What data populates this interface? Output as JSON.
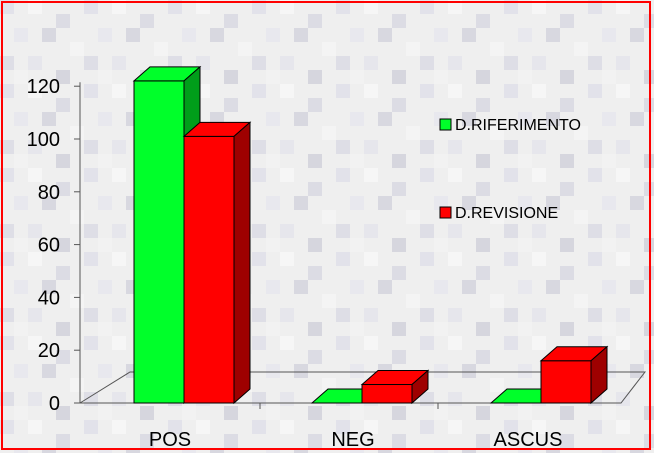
{
  "chart_data": {
    "type": "bar",
    "title": "",
    "xlabel": "",
    "ylabel": "",
    "categories": [
      "POS",
      "NEG",
      "ASCUS"
    ],
    "series": [
      {
        "name": "D.RIFERIMENTO",
        "values": [
          122,
          0,
          0
        ],
        "color": "#00ff2a"
      },
      {
        "name": "D.REVISIONE",
        "values": [
          101,
          7,
          16
        ],
        "color": "#ff0000"
      }
    ],
    "y_ticks": [
      "0",
      "20",
      "40",
      "60",
      "80",
      "100",
      "120"
    ],
    "ylim": [
      0,
      120
    ],
    "grid": false,
    "style": "3d-clustered-bar",
    "legend_position": "right",
    "background": "light gray mosaic texture",
    "frame_color": "#ff0000"
  }
}
